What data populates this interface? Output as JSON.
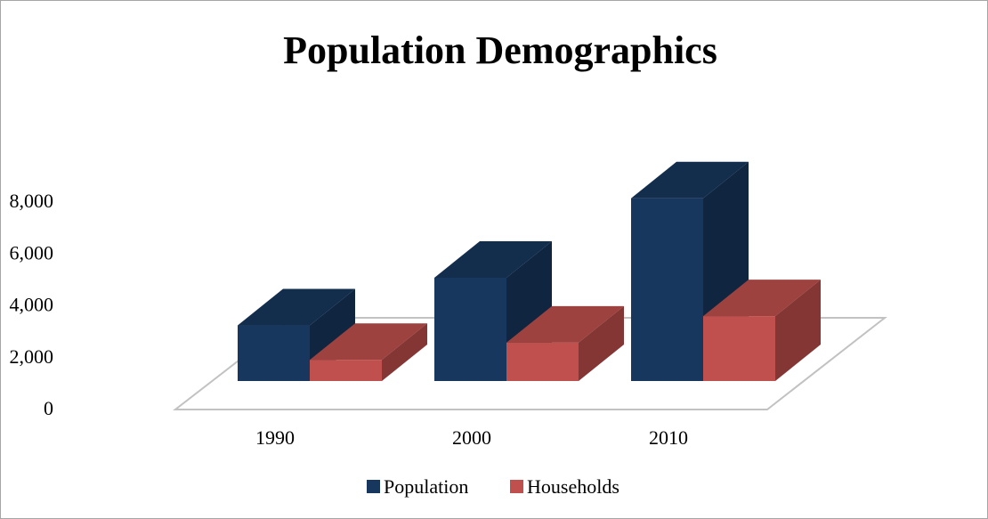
{
  "chart_data": {
    "type": "bar",
    "title": "Population Demographics",
    "categories": [
      "1990",
      "2000",
      "2010"
    ],
    "series": [
      {
        "name": "Population",
        "values": [
          2100,
          3900,
          6900
        ],
        "color": "#17375e"
      },
      {
        "name": "Households",
        "values": [
          800,
          1450,
          2450
        ],
        "color": "#c0504d"
      }
    ],
    "y_ticks": [
      "0",
      "2,000",
      "4,000",
      "6,000",
      "8,000"
    ],
    "y_tick_values": [
      0,
      2000,
      4000,
      6000,
      8000
    ],
    "ylim": [
      0,
      8000
    ],
    "style": "3d-clustered-column",
    "legend": "bottom",
    "grid": false
  }
}
